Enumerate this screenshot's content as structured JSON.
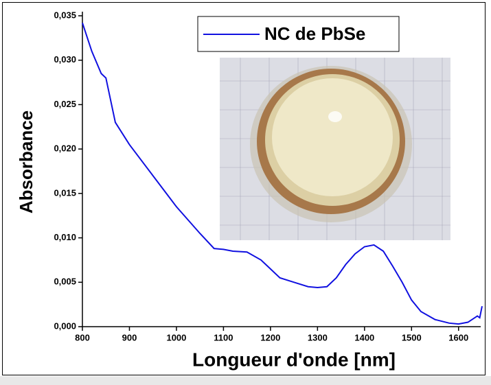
{
  "chart_data": {
    "type": "line",
    "x_label": "Longueur d'onde [nm]",
    "y_label": "Absorbance",
    "series": [
      {
        "name": "NC de PbSe",
        "color": "#1010e0",
        "x": [
          800,
          820,
          840,
          850,
          860,
          870,
          900,
          950,
          1000,
          1050,
          1080,
          1100,
          1120,
          1150,
          1180,
          1200,
          1220,
          1250,
          1280,
          1300,
          1320,
          1340,
          1360,
          1380,
          1400,
          1420,
          1440,
          1460,
          1480,
          1500,
          1520,
          1550,
          1580,
          1600,
          1620,
          1640,
          1645,
          1650
        ],
        "values": [
          0.0342,
          0.031,
          0.0285,
          0.028,
          0.0255,
          0.023,
          0.0205,
          0.017,
          0.0135,
          0.0105,
          0.0088,
          0.0087,
          0.0085,
          0.0084,
          0.0075,
          0.0065,
          0.0055,
          0.005,
          0.0045,
          0.0044,
          0.0045,
          0.0055,
          0.007,
          0.0082,
          0.009,
          0.0092,
          0.0085,
          0.0068,
          0.005,
          0.003,
          0.0017,
          0.0008,
          0.0004,
          0.0003,
          0.0005,
          0.0012,
          0.001,
          0.0023
        ]
      }
    ],
    "xlim": [
      800,
      1650
    ],
    "xticks": [
      800,
      900,
      1000,
      1100,
      1200,
      1300,
      1400,
      1500,
      1600
    ],
    "ylim": [
      0,
      0.035
    ],
    "yticks": [
      {
        "value": 0,
        "label": "0,000"
      },
      {
        "value": 0.005,
        "label": "0,005"
      },
      {
        "value": 0.01,
        "label": "0,010"
      },
      {
        "value": 0.015,
        "label": "0,015"
      },
      {
        "value": 0.02,
        "label": "0,020"
      },
      {
        "value": 0.025,
        "label": "0,025"
      },
      {
        "value": 0.03,
        "label": "0,030"
      },
      {
        "value": 0.035,
        "label": "0,035"
      }
    ],
    "legend": "top-center"
  }
}
